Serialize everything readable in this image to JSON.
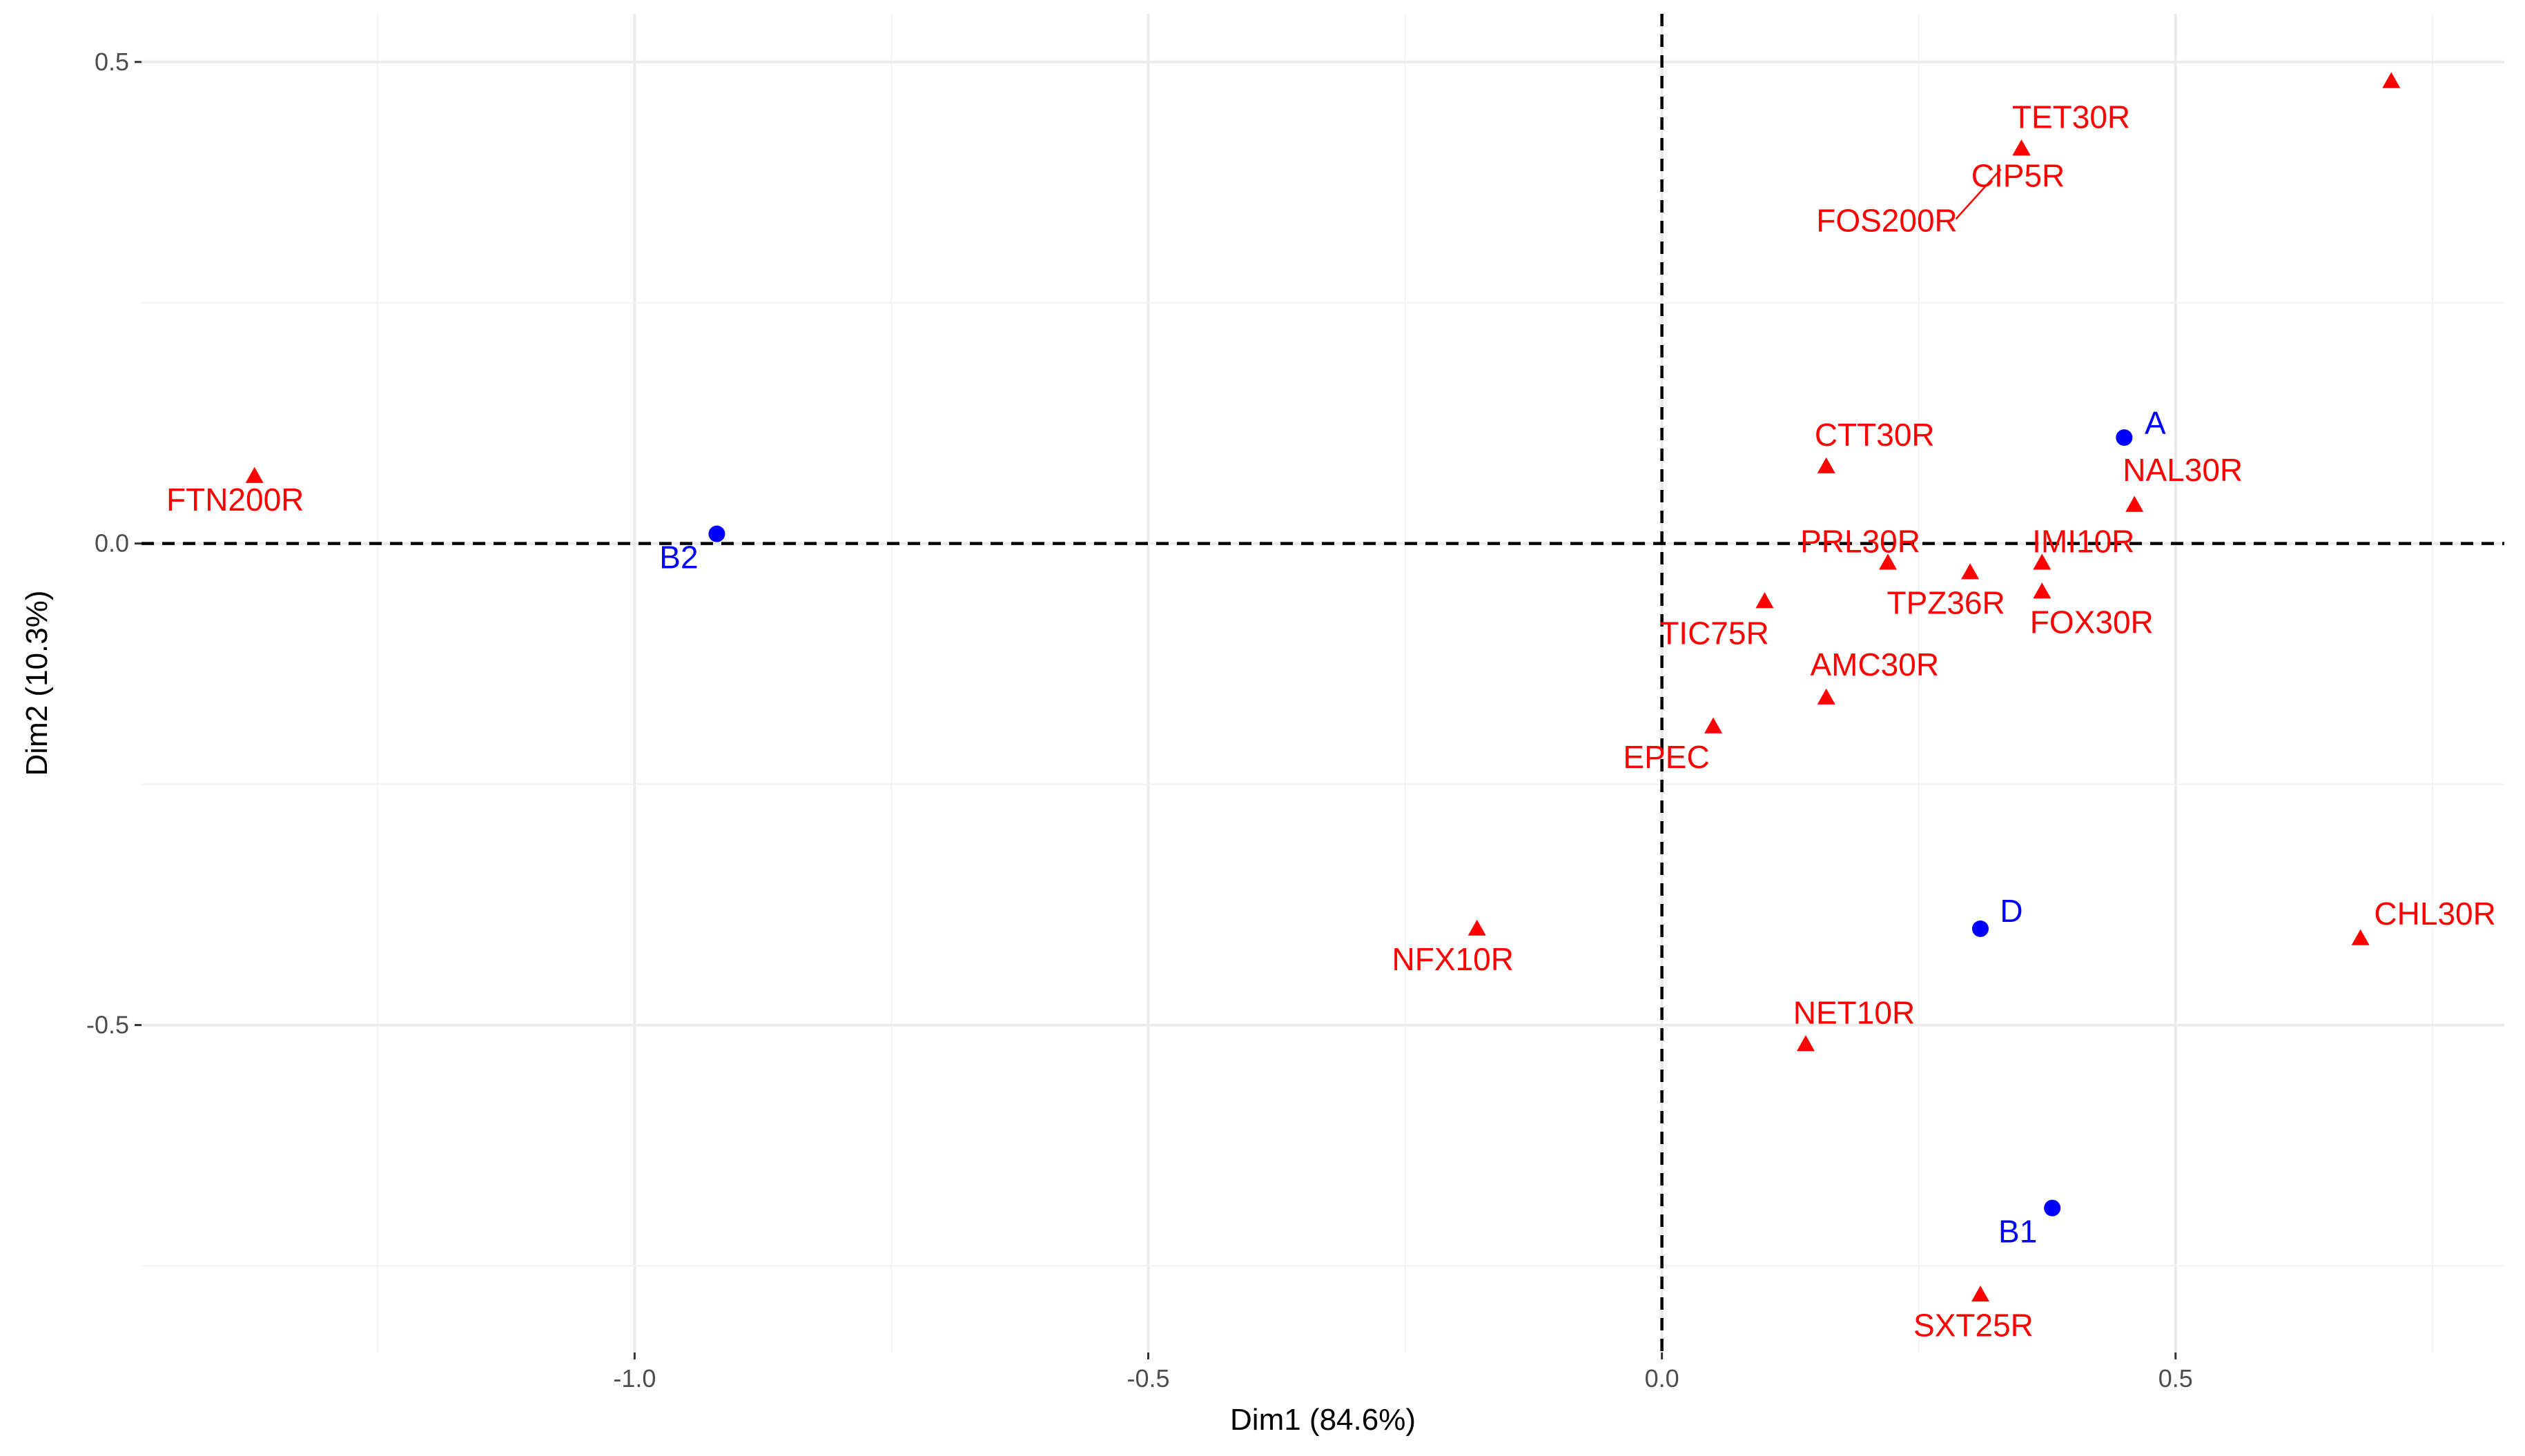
{
  "chart_data": {
    "type": "scatter",
    "title": "",
    "xlabel": "Dim1 (84.6%)",
    "ylabel": "Dim2 (10.3%)",
    "xlim": [
      -1.48,
      0.82
    ],
    "ylim": [
      -0.84,
      0.55
    ],
    "x_ticks": [
      -1.0,
      -0.5,
      0.0,
      0.5
    ],
    "x_tick_labels": [
      "-1.0",
      "-0.5",
      "0.0",
      "0.5"
    ],
    "y_ticks": [
      -0.5,
      0.0,
      0.5
    ],
    "y_tick_labels": [
      "-0.5",
      "0.0",
      "0.5"
    ],
    "grid": true,
    "reference_lines": {
      "x": 0,
      "y": 0,
      "style": "dashed"
    },
    "colors": {
      "variables": "#ff0000",
      "individuals": "#0000ff"
    },
    "series": [
      {
        "marker": "triangle",
        "color": "#ff0000",
        "points": [
          {
            "x": -1.37,
            "y": 0.07,
            "label": "FTN200R"
          },
          {
            "x": 0.35,
            "y": 0.41,
            "label": "TET30R"
          },
          {
            "x": 0.35,
            "y": 0.41,
            "label": "CIP5R"
          },
          {
            "x": 0.35,
            "y": 0.41,
            "label": "FOS200R"
          },
          {
            "x": 0.71,
            "y": 0.48,
            "label": ""
          },
          {
            "x": 0.16,
            "y": 0.08,
            "label": "CTT30R"
          },
          {
            "x": 0.46,
            "y": 0.04,
            "label": "NAL30R"
          },
          {
            "x": 0.22,
            "y": -0.02,
            "label": "PRL30R"
          },
          {
            "x": 0.37,
            "y": -0.02,
            "label": "IMI10R"
          },
          {
            "x": 0.3,
            "y": -0.03,
            "label": "TPZ36R"
          },
          {
            "x": 0.37,
            "y": -0.05,
            "label": "FOX30R"
          },
          {
            "x": 0.1,
            "y": -0.06,
            "label": "TIC75R"
          },
          {
            "x": 0.16,
            "y": -0.16,
            "label": "AMC30R"
          },
          {
            "x": 0.05,
            "y": -0.19,
            "label": "EPEC"
          },
          {
            "x": -0.18,
            "y": -0.4,
            "label": "NFX10R"
          },
          {
            "x": 0.68,
            "y": -0.41,
            "label": "CHL30R"
          },
          {
            "x": 0.14,
            "y": -0.52,
            "label": "NET10R"
          },
          {
            "x": 0.31,
            "y": -0.78,
            "label": "SXT25R"
          }
        ]
      },
      {
        "marker": "circle",
        "color": "#0000ff",
        "points": [
          {
            "x": 0.45,
            "y": 0.11,
            "label": "A"
          },
          {
            "x": -0.92,
            "y": 0.01,
            "label": "B2"
          },
          {
            "x": 0.31,
            "y": -0.4,
            "label": "D"
          },
          {
            "x": 0.38,
            "y": -0.69,
            "label": "B1"
          }
        ]
      }
    ]
  }
}
